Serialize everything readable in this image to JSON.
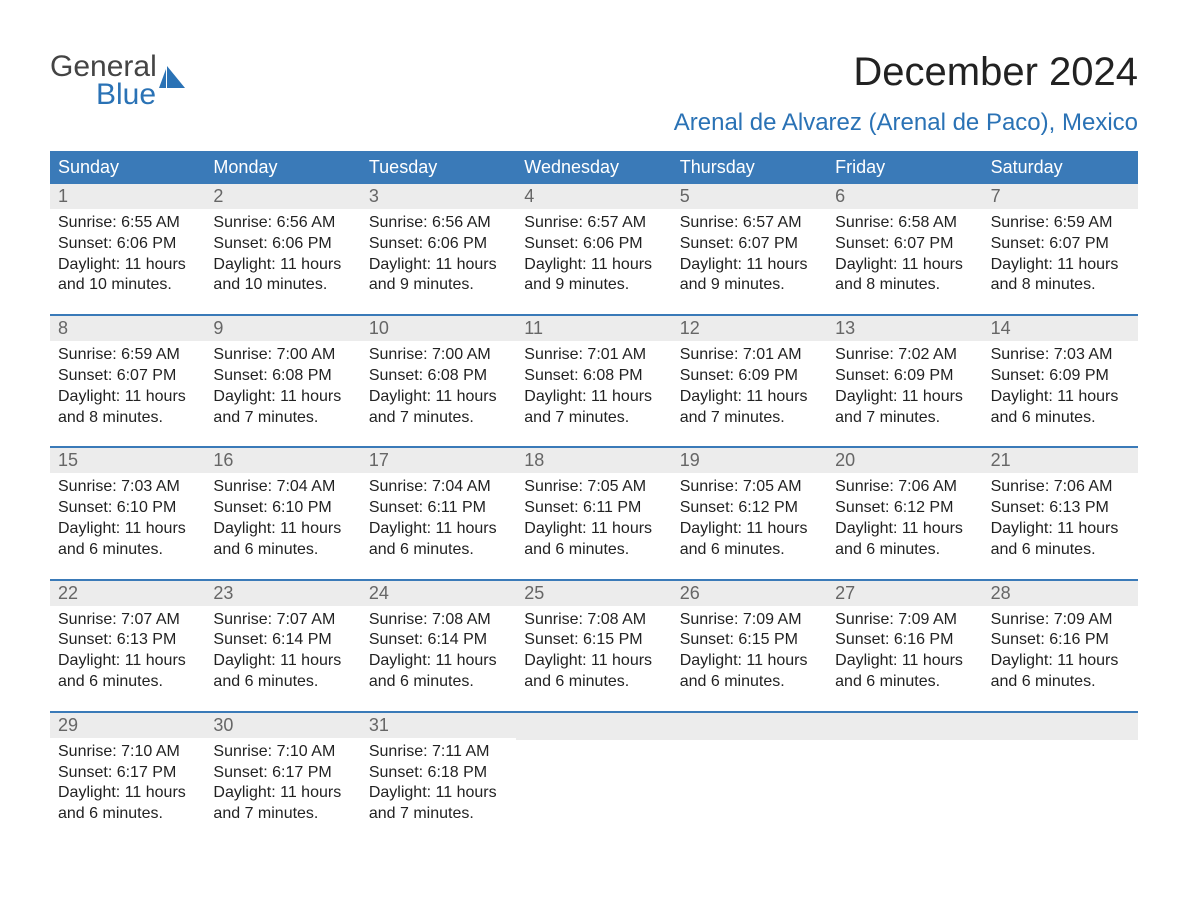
{
  "brand": {
    "word1": "General",
    "word2": "Blue",
    "logo_color": "#2a72b5",
    "text_color_top": "#444444"
  },
  "header": {
    "month": "December 2024",
    "location": "Arenal de Alvarez (Arenal de Paco), Mexico"
  },
  "colors": {
    "header_bg": "#3a7ab8",
    "header_text": "#ffffff",
    "week_border": "#3a7ab8",
    "daynum_bg": "#ececec",
    "daynum_text": "#666666",
    "body_text": "#222222"
  },
  "day_names": [
    "Sunday",
    "Monday",
    "Tuesday",
    "Wednesday",
    "Thursday",
    "Friday",
    "Saturday"
  ],
  "weeks": [
    [
      {
        "num": "1",
        "sunrise": "Sunrise: 6:55 AM",
        "sunset": "Sunset: 6:06 PM",
        "daylight1": "Daylight: 11 hours",
        "daylight2": "and 10 minutes."
      },
      {
        "num": "2",
        "sunrise": "Sunrise: 6:56 AM",
        "sunset": "Sunset: 6:06 PM",
        "daylight1": "Daylight: 11 hours",
        "daylight2": "and 10 minutes."
      },
      {
        "num": "3",
        "sunrise": "Sunrise: 6:56 AM",
        "sunset": "Sunset: 6:06 PM",
        "daylight1": "Daylight: 11 hours",
        "daylight2": "and 9 minutes."
      },
      {
        "num": "4",
        "sunrise": "Sunrise: 6:57 AM",
        "sunset": "Sunset: 6:06 PM",
        "daylight1": "Daylight: 11 hours",
        "daylight2": "and 9 minutes."
      },
      {
        "num": "5",
        "sunrise": "Sunrise: 6:57 AM",
        "sunset": "Sunset: 6:07 PM",
        "daylight1": "Daylight: 11 hours",
        "daylight2": "and 9 minutes."
      },
      {
        "num": "6",
        "sunrise": "Sunrise: 6:58 AM",
        "sunset": "Sunset: 6:07 PM",
        "daylight1": "Daylight: 11 hours",
        "daylight2": "and 8 minutes."
      },
      {
        "num": "7",
        "sunrise": "Sunrise: 6:59 AM",
        "sunset": "Sunset: 6:07 PM",
        "daylight1": "Daylight: 11 hours",
        "daylight2": "and 8 minutes."
      }
    ],
    [
      {
        "num": "8",
        "sunrise": "Sunrise: 6:59 AM",
        "sunset": "Sunset: 6:07 PM",
        "daylight1": "Daylight: 11 hours",
        "daylight2": "and 8 minutes."
      },
      {
        "num": "9",
        "sunrise": "Sunrise: 7:00 AM",
        "sunset": "Sunset: 6:08 PM",
        "daylight1": "Daylight: 11 hours",
        "daylight2": "and 7 minutes."
      },
      {
        "num": "10",
        "sunrise": "Sunrise: 7:00 AM",
        "sunset": "Sunset: 6:08 PM",
        "daylight1": "Daylight: 11 hours",
        "daylight2": "and 7 minutes."
      },
      {
        "num": "11",
        "sunrise": "Sunrise: 7:01 AM",
        "sunset": "Sunset: 6:08 PM",
        "daylight1": "Daylight: 11 hours",
        "daylight2": "and 7 minutes."
      },
      {
        "num": "12",
        "sunrise": "Sunrise: 7:01 AM",
        "sunset": "Sunset: 6:09 PM",
        "daylight1": "Daylight: 11 hours",
        "daylight2": "and 7 minutes."
      },
      {
        "num": "13",
        "sunrise": "Sunrise: 7:02 AM",
        "sunset": "Sunset: 6:09 PM",
        "daylight1": "Daylight: 11 hours",
        "daylight2": "and 7 minutes."
      },
      {
        "num": "14",
        "sunrise": "Sunrise: 7:03 AM",
        "sunset": "Sunset: 6:09 PM",
        "daylight1": "Daylight: 11 hours",
        "daylight2": "and 6 minutes."
      }
    ],
    [
      {
        "num": "15",
        "sunrise": "Sunrise: 7:03 AM",
        "sunset": "Sunset: 6:10 PM",
        "daylight1": "Daylight: 11 hours",
        "daylight2": "and 6 minutes."
      },
      {
        "num": "16",
        "sunrise": "Sunrise: 7:04 AM",
        "sunset": "Sunset: 6:10 PM",
        "daylight1": "Daylight: 11 hours",
        "daylight2": "and 6 minutes."
      },
      {
        "num": "17",
        "sunrise": "Sunrise: 7:04 AM",
        "sunset": "Sunset: 6:11 PM",
        "daylight1": "Daylight: 11 hours",
        "daylight2": "and 6 minutes."
      },
      {
        "num": "18",
        "sunrise": "Sunrise: 7:05 AM",
        "sunset": "Sunset: 6:11 PM",
        "daylight1": "Daylight: 11 hours",
        "daylight2": "and 6 minutes."
      },
      {
        "num": "19",
        "sunrise": "Sunrise: 7:05 AM",
        "sunset": "Sunset: 6:12 PM",
        "daylight1": "Daylight: 11 hours",
        "daylight2": "and 6 minutes."
      },
      {
        "num": "20",
        "sunrise": "Sunrise: 7:06 AM",
        "sunset": "Sunset: 6:12 PM",
        "daylight1": "Daylight: 11 hours",
        "daylight2": "and 6 minutes."
      },
      {
        "num": "21",
        "sunrise": "Sunrise: 7:06 AM",
        "sunset": "Sunset: 6:13 PM",
        "daylight1": "Daylight: 11 hours",
        "daylight2": "and 6 minutes."
      }
    ],
    [
      {
        "num": "22",
        "sunrise": "Sunrise: 7:07 AM",
        "sunset": "Sunset: 6:13 PM",
        "daylight1": "Daylight: 11 hours",
        "daylight2": "and 6 minutes."
      },
      {
        "num": "23",
        "sunrise": "Sunrise: 7:07 AM",
        "sunset": "Sunset: 6:14 PM",
        "daylight1": "Daylight: 11 hours",
        "daylight2": "and 6 minutes."
      },
      {
        "num": "24",
        "sunrise": "Sunrise: 7:08 AM",
        "sunset": "Sunset: 6:14 PM",
        "daylight1": "Daylight: 11 hours",
        "daylight2": "and 6 minutes."
      },
      {
        "num": "25",
        "sunrise": "Sunrise: 7:08 AM",
        "sunset": "Sunset: 6:15 PM",
        "daylight1": "Daylight: 11 hours",
        "daylight2": "and 6 minutes."
      },
      {
        "num": "26",
        "sunrise": "Sunrise: 7:09 AM",
        "sunset": "Sunset: 6:15 PM",
        "daylight1": "Daylight: 11 hours",
        "daylight2": "and 6 minutes."
      },
      {
        "num": "27",
        "sunrise": "Sunrise: 7:09 AM",
        "sunset": "Sunset: 6:16 PM",
        "daylight1": "Daylight: 11 hours",
        "daylight2": "and 6 minutes."
      },
      {
        "num": "28",
        "sunrise": "Sunrise: 7:09 AM",
        "sunset": "Sunset: 6:16 PM",
        "daylight1": "Daylight: 11 hours",
        "daylight2": "and 6 minutes."
      }
    ],
    [
      {
        "num": "29",
        "sunrise": "Sunrise: 7:10 AM",
        "sunset": "Sunset: 6:17 PM",
        "daylight1": "Daylight: 11 hours",
        "daylight2": "and 6 minutes."
      },
      {
        "num": "30",
        "sunrise": "Sunrise: 7:10 AM",
        "sunset": "Sunset: 6:17 PM",
        "daylight1": "Daylight: 11 hours",
        "daylight2": "and 7 minutes."
      },
      {
        "num": "31",
        "sunrise": "Sunrise: 7:11 AM",
        "sunset": "Sunset: 6:18 PM",
        "daylight1": "Daylight: 11 hours",
        "daylight2": "and 7 minutes."
      },
      null,
      null,
      null,
      null
    ]
  ]
}
